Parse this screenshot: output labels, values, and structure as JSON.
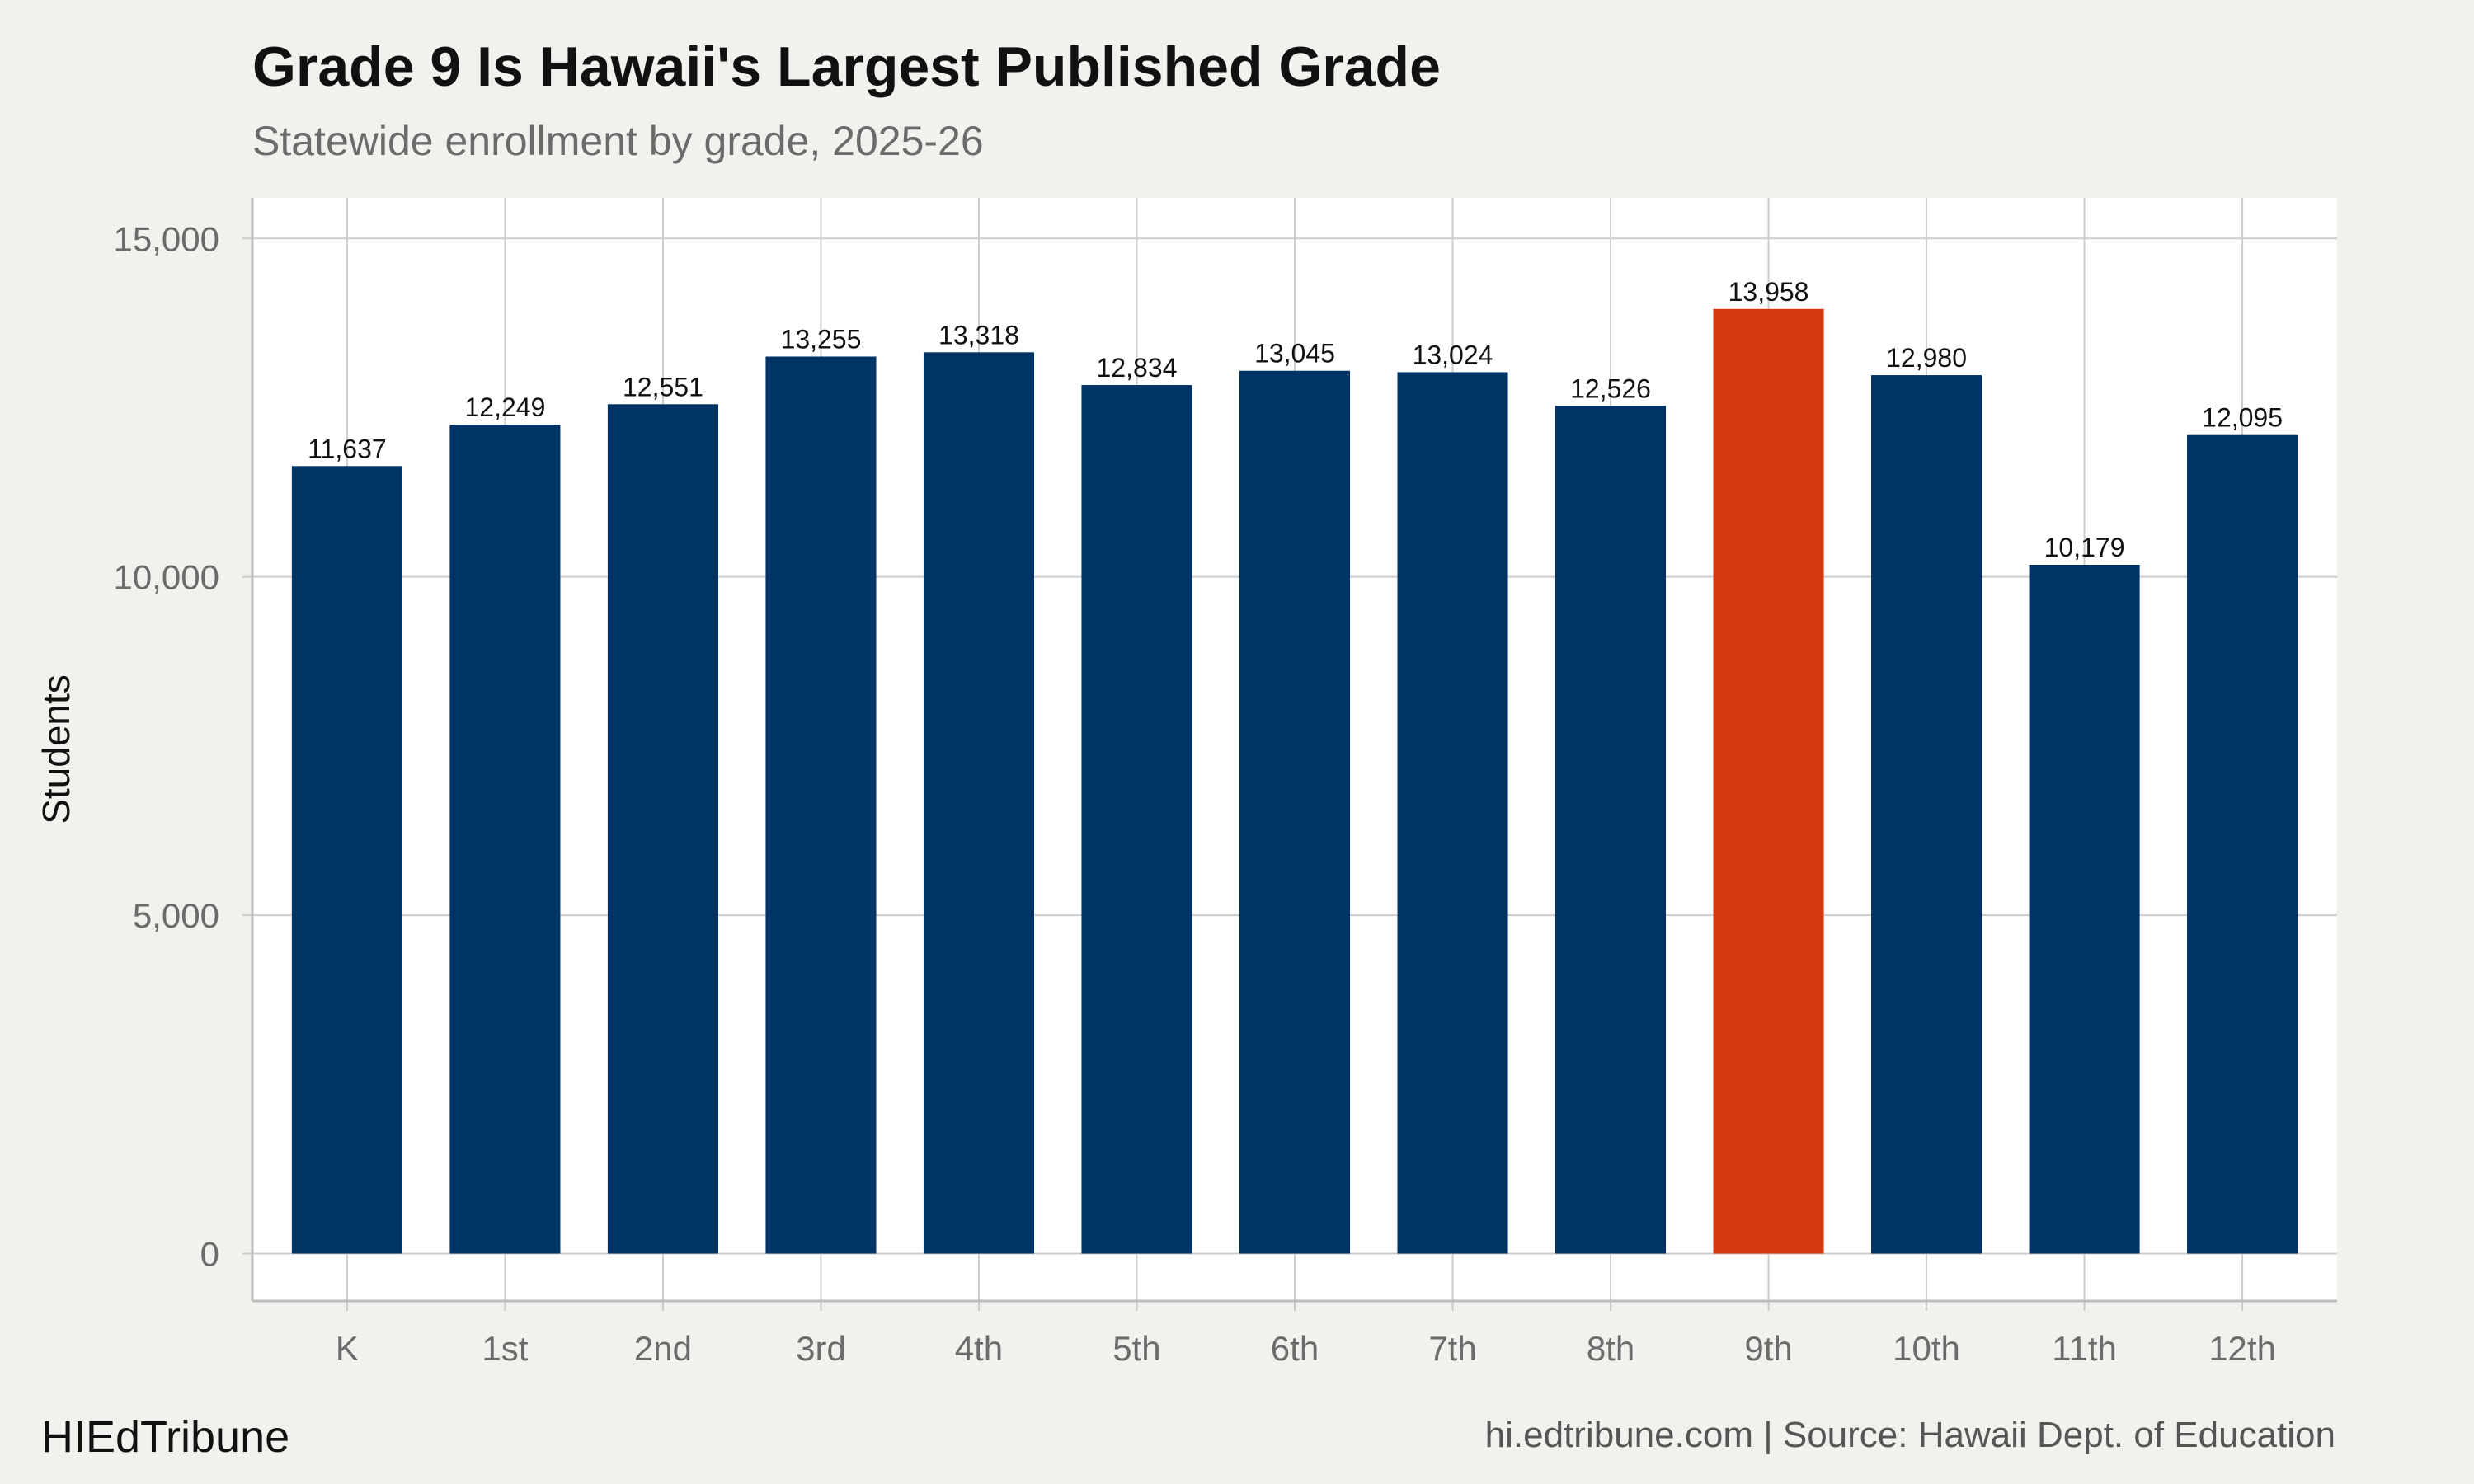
{
  "header": {
    "title": "Grade 9 Is Hawaii's Largest Published Grade",
    "subtitle": "Statewide enrollment by grade, 2025-26"
  },
  "footer": {
    "brand": "HIEdTribune",
    "source": "hi.edtribune.com | Source: Hawaii Dept. of Education"
  },
  "colors": {
    "bar": "#003366",
    "highlight": "#d4380d",
    "panel": "#ffffff",
    "background": "#f3f1ed",
    "grid": "#cccccc"
  },
  "chart_data": {
    "type": "bar",
    "title": "Grade 9 Is Hawaii's Largest Published Grade",
    "subtitle": "Statewide enrollment by grade, 2025-26",
    "xlabel": "",
    "ylabel": "Students",
    "categories": [
      "K",
      "1st",
      "2nd",
      "3rd",
      "4th",
      "5th",
      "6th",
      "7th",
      "8th",
      "9th",
      "10th",
      "11th",
      "12th"
    ],
    "values": [
      11637,
      12249,
      12551,
      13255,
      13318,
      12834,
      13045,
      13024,
      12526,
      13958,
      12980,
      10179,
      12095
    ],
    "value_labels": [
      "11,637",
      "12,249",
      "12,551",
      "13,255",
      "13,318",
      "12,834",
      "13,045",
      "13,024",
      "12,526",
      "13,958",
      "12,980",
      "10,179",
      "12,095"
    ],
    "highlight_category": "9th",
    "ylim": [
      -700,
      15600
    ],
    "yticks": [
      0,
      5000,
      10000,
      15000
    ],
    "ytick_labels": [
      "0",
      "5,000",
      "10,000",
      "15,000"
    ],
    "grid": true,
    "legend": "none"
  }
}
